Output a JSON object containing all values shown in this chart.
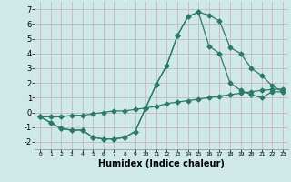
{
  "xlabel": "Humidex (Indice chaleur)",
  "ylabel": "",
  "background_color": "#cfe8e8",
  "grid_color": "#c8b8b8",
  "line_color": "#2a7a6a",
  "xlim": [
    -0.5,
    23.5
  ],
  "ylim": [
    -2.5,
    7.5
  ],
  "xticks": [
    0,
    1,
    2,
    3,
    4,
    5,
    6,
    7,
    8,
    9,
    10,
    11,
    12,
    13,
    14,
    15,
    16,
    17,
    18,
    19,
    20,
    21,
    22,
    23
  ],
  "yticks": [
    -2,
    -1,
    0,
    1,
    2,
    3,
    4,
    5,
    6,
    7
  ],
  "curve1_x": [
    0,
    1,
    2,
    3,
    4,
    5,
    6,
    7,
    8,
    9,
    10,
    11,
    12,
    13,
    14,
    15,
    16,
    17,
    18,
    19,
    20,
    21,
    22,
    23
  ],
  "curve1_y": [
    -0.3,
    -0.7,
    -1.1,
    -1.2,
    -1.2,
    -1.7,
    -1.8,
    -1.8,
    -1.7,
    -1.3,
    0.3,
    1.9,
    3.2,
    5.2,
    6.5,
    6.8,
    6.6,
    6.2,
    4.4,
    4.0,
    3.0,
    2.5,
    1.8,
    1.4
  ],
  "curve2_x": [
    0,
    1,
    2,
    3,
    4,
    5,
    6,
    7,
    8,
    9,
    10,
    11,
    12,
    13,
    14,
    15,
    16,
    17,
    18,
    19,
    20,
    21,
    22,
    23
  ],
  "curve2_y": [
    -0.3,
    -0.7,
    -1.1,
    -1.2,
    -1.2,
    -1.7,
    -1.8,
    -1.8,
    -1.7,
    -1.3,
    0.3,
    1.9,
    3.2,
    5.2,
    6.5,
    6.8,
    4.5,
    4.0,
    2.0,
    1.5,
    1.2,
    1.0,
    1.4,
    1.4
  ],
  "curve3_x": [
    0,
    1,
    2,
    3,
    4,
    5,
    6,
    7,
    8,
    9,
    10,
    11,
    12,
    13,
    14,
    15,
    16,
    17,
    18,
    19,
    20,
    21,
    22,
    23
  ],
  "curve3_y": [
    -0.3,
    -0.3,
    -0.3,
    -0.2,
    -0.2,
    -0.1,
    -0.0,
    0.1,
    0.1,
    0.2,
    0.3,
    0.4,
    0.6,
    0.7,
    0.8,
    0.9,
    1.0,
    1.1,
    1.2,
    1.3,
    1.4,
    1.5,
    1.55,
    1.6
  ]
}
